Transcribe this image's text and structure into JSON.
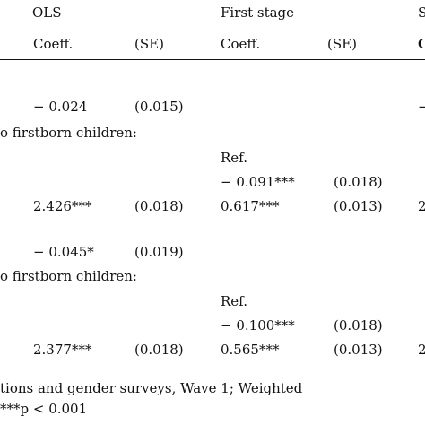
{
  "header": {
    "ols": "OLS",
    "first_stage": "First stage",
    "second_group_initial": "S",
    "coeff": "Coeff.",
    "se": "(SE)",
    "coeff_cut": "C"
  },
  "panel1": {
    "row1": {
      "ols_coef": "− 0.024",
      "ols_se": "(0.015)"
    },
    "section_label": "o firstborn children:",
    "ref": "Ref.",
    "row_second": {
      "fs_coef": "− 0.091***",
      "fs_se": "(0.018)"
    },
    "row_third": {
      "ols_coef": "2.426***",
      "ols_se": "(0.018)",
      "fs_coef": "0.617***",
      "fs_se": "(0.013)",
      "cut": "2"
    },
    "cut_first": "−"
  },
  "panel2": {
    "row1": {
      "ols_coef": "− 0.045*",
      "ols_se": "(0.019)"
    },
    "section_label": "o firstborn children:",
    "ref": "Ref.",
    "row_second": {
      "fs_coef": "− 0.100***",
      "fs_se": "(0.018)"
    },
    "row_third": {
      "ols_coef": "2.377***",
      "ols_se": "(0.018)",
      "fs_coef": "0.565***",
      "fs_se": "(0.013)",
      "cut": "2"
    }
  },
  "footer": {
    "source": "tions and gender surveys, Wave 1; Weighted",
    "significance": "***p < 0.001"
  }
}
